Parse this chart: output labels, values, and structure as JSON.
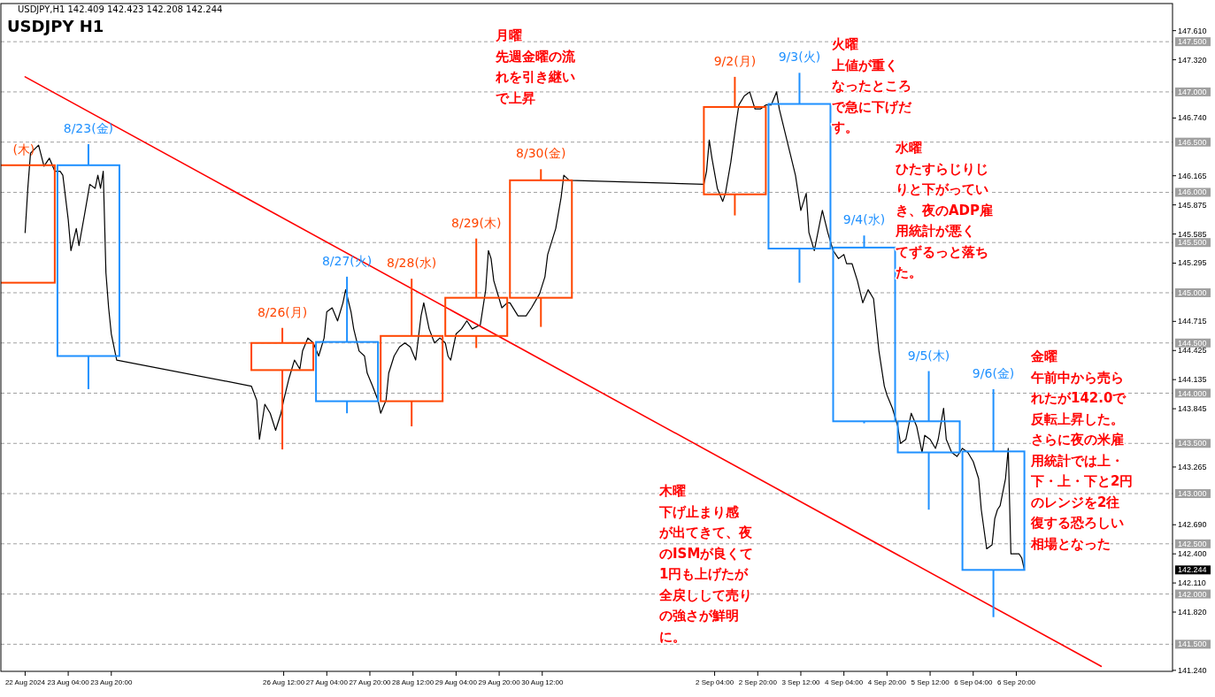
{
  "chart_data": {
    "type": "candlestick",
    "title": "USDJPY H1",
    "subtitle": "USDJPY,H1  142.409 142.423 142.208 142.244",
    "x": [
      "2024-08-22T11:30",
      "2024-08-23T11:30",
      "2024-08-26T11:30",
      "2024-08-27T11:30",
      "2024-08-28T11:30",
      "2024-08-29T11:30",
      "2024-08-30T11:30",
      "2024-09-02T11:30",
      "2024-09-03T11:30",
      "2024-09-04T11:30",
      "2024-09-05T11:30",
      "2024-09-06T11:30"
    ],
    "ohlc": [
      [
        145.1,
        146.27,
        145.1,
        146.27
      ],
      [
        146.27,
        146.48,
        144.04,
        144.37
      ],
      [
        144.23,
        144.65,
        143.44,
        144.5
      ],
      [
        144.51,
        145.16,
        143.8,
        143.92
      ],
      [
        143.92,
        145.14,
        143.67,
        144.57
      ],
      [
        144.57,
        145.54,
        144.45,
        144.95
      ],
      [
        144.95,
        146.23,
        144.66,
        146.12
      ],
      [
        145.98,
        147.15,
        145.77,
        146.85
      ],
      [
        146.88,
        147.19,
        145.1,
        145.44
      ],
      [
        145.45,
        145.57,
        143.7,
        143.72
      ],
      [
        143.72,
        144.22,
        142.84,
        143.41
      ],
      [
        143.42,
        144.04,
        141.77,
        142.24
      ]
    ],
    "colors": [
      "#ff4500",
      "#1e90ff",
      "#ff4500",
      "#1e90ff",
      "#ff4500",
      "#ff4500",
      "#ff4500",
      "#ff4500",
      "#1e90ff",
      "#1e90ff",
      "#1e90ff",
      "#1e90ff"
    ],
    "series": [
      {
        "type": "line",
        "color": "#000000",
        "x": [
          "2024-08-22T12:00",
          "2024-08-22T13:00",
          "2024-08-22T14:00",
          "2024-08-22T17:00",
          "2024-08-22T19:00",
          "2024-08-22T21:00",
          "2024-08-22T23:00",
          "2024-08-23T01:00",
          "2024-08-23T02:00",
          "2024-08-23T04:00",
          "2024-08-23T05:00",
          "2024-08-23T07:00",
          "2024-08-23T08:00",
          "2024-08-23T10:00",
          "2024-08-23T12:00",
          "2024-08-23T14:00",
          "2024-08-23T15:00",
          "2024-08-23T16:00",
          "2024-08-23T17:00",
          "2024-08-23T18:00",
          "2024-08-23T19:00",
          "2024-08-23T20:00",
          "2024-08-23T22:00",
          "2024-08-26T00:00",
          "2024-08-26T02:00",
          "2024-08-26T03:00",
          "2024-08-26T05:00",
          "2024-08-26T07:00",
          "2024-08-26T09:00",
          "2024-08-26T11:00",
          "2024-08-26T12:00",
          "2024-08-26T14:00",
          "2024-08-26T16:00",
          "2024-08-26T18:00",
          "2024-08-26T19:00",
          "2024-08-26T21:00",
          "2024-08-26T23:00",
          "2024-08-27T01:00",
          "2024-08-27T03:00",
          "2024-08-27T04:00",
          "2024-08-27T06:00",
          "2024-08-27T08:00",
          "2024-08-27T10:00",
          "2024-08-27T11:00",
          "2024-08-27T13:00",
          "2024-08-27T14:00",
          "2024-08-27T16:00",
          "2024-08-27T18:00",
          "2024-08-27T19:00",
          "2024-08-27T21:00",
          "2024-08-27T23:00",
          "2024-08-28T00:00",
          "2024-08-28T02:00",
          "2024-08-28T03:00",
          "2024-08-28T05:00",
          "2024-08-28T07:00",
          "2024-08-28T09:00",
          "2024-08-28T11:00",
          "2024-08-28T13:00",
          "2024-08-28T15:00",
          "2024-08-28T16:00",
          "2024-08-28T18:00",
          "2024-08-28T20:00",
          "2024-08-28T22:00",
          "2024-08-29T00:00",
          "2024-08-29T01:00",
          "2024-08-29T02:00",
          "2024-08-29T04:00",
          "2024-08-29T06:00",
          "2024-08-29T08:00",
          "2024-08-29T10:00",
          "2024-08-29T13:00",
          "2024-08-29T15:00",
          "2024-08-29T16:00",
          "2024-08-29T17:00",
          "2024-08-29T18:00",
          "2024-08-29T20:00",
          "2024-08-29T21:00",
          "2024-08-29T23:00",
          "2024-08-30T00:00",
          "2024-08-30T03:00",
          "2024-08-30T06:00",
          "2024-08-30T08:00",
          "2024-08-30T11:00",
          "2024-08-30T13:00",
          "2024-08-30T14:00",
          "2024-08-30T17:00",
          "2024-08-30T19:00",
          "2024-08-30T20:00",
          "2024-08-30T22:00",
          "2024-09-02T00:00",
          "2024-09-02T01:00",
          "2024-09-02T02:00",
          "2024-09-02T03:00",
          "2024-09-02T05:00",
          "2024-09-02T07:00",
          "2024-09-02T08:00",
          "2024-09-02T10:00",
          "2024-09-02T12:00",
          "2024-09-02T13:00",
          "2024-09-02T15:00",
          "2024-09-02T17:00",
          "2024-09-02T19:00",
          "2024-09-02T21:00",
          "2024-09-02T23:00",
          "2024-09-03T01:00",
          "2024-09-03T03:00",
          "2024-09-03T04:00",
          "2024-09-03T06:00",
          "2024-09-03T08:00",
          "2024-09-03T10:00",
          "2024-09-03T12:00",
          "2024-09-03T14:00",
          "2024-09-03T15:00",
          "2024-09-03T17:00",
          "2024-09-03T19:00",
          "2024-09-03T20:00",
          "2024-09-03T22:00",
          "2024-09-04T00:00",
          "2024-09-04T02:00",
          "2024-09-04T04:00",
          "2024-09-04T05:00",
          "2024-09-04T07:00",
          "2024-09-04T09:00",
          "2024-09-04T11:00",
          "2024-09-04T13:00",
          "2024-09-04T15:00",
          "2024-09-04T16:00",
          "2024-09-04T17:00",
          "2024-09-04T19:00",
          "2024-09-04T20:00",
          "2024-09-04T22:00",
          "2024-09-05T00:00",
          "2024-09-05T01:00",
          "2024-09-05T03:00",
          "2024-09-05T05:00",
          "2024-09-05T07:00",
          "2024-09-05T09:00",
          "2024-09-05T10:00",
          "2024-09-05T12:00",
          "2024-09-05T14:00",
          "2024-09-05T15:00",
          "2024-09-05T17:00",
          "2024-09-05T18:00",
          "2024-09-05T20:00",
          "2024-09-05T22:00",
          "2024-09-06T00:00",
          "2024-09-06T02:00",
          "2024-09-06T04:00",
          "2024-09-06T06:00",
          "2024-09-06T07:00",
          "2024-09-06T09:00",
          "2024-09-06T11:00",
          "2024-09-06T12:00",
          "2024-09-06T13:00",
          "2024-09-06T14:00",
          "2024-09-06T16:00",
          "2024-09-06T17:00",
          "2024-09-06T18:00",
          "2024-09-06T19:00",
          "2024-09-06T21:00",
          "2024-09-06T22:00",
          "2024-09-06T23:00"
        ],
        "values": [
          145.6,
          146.04,
          146.39,
          146.47,
          146.26,
          146.34,
          146.21,
          146.21,
          146.17,
          145.73,
          145.42,
          145.64,
          145.47,
          145.77,
          146.08,
          146.04,
          146.17,
          146.04,
          146.21,
          145.2,
          144.85,
          144.59,
          144.33,
          144.07,
          143.93,
          143.54,
          143.89,
          143.8,
          143.63,
          143.8,
          143.93,
          144.15,
          144.33,
          144.24,
          144.42,
          144.55,
          144.5,
          144.37,
          144.55,
          144.81,
          144.85,
          144.72,
          144.9,
          145.03,
          144.81,
          144.64,
          144.42,
          144.37,
          144.2,
          144.07,
          143.93,
          143.8,
          143.93,
          144.2,
          144.37,
          144.46,
          144.5,
          144.46,
          144.33,
          144.77,
          144.9,
          144.64,
          144.5,
          144.55,
          144.5,
          144.37,
          144.33,
          144.59,
          144.64,
          144.72,
          144.64,
          144.68,
          145.03,
          145.42,
          145.34,
          145.12,
          144.94,
          144.85,
          144.9,
          144.9,
          144.77,
          144.77,
          144.85,
          144.99,
          145.16,
          145.38,
          145.64,
          145.95,
          146.17,
          146.12,
          146.08,
          146.21,
          146.52,
          146.34,
          146.04,
          145.91,
          145.99,
          146.3,
          146.69,
          146.87,
          146.96,
          147.0,
          146.83,
          146.83,
          146.87,
          146.87,
          147.0,
          146.83,
          146.61,
          146.39,
          146.17,
          145.82,
          145.99,
          145.6,
          145.42,
          145.69,
          145.82,
          145.6,
          145.42,
          145.34,
          145.38,
          145.29,
          145.29,
          145.12,
          144.9,
          145.03,
          144.94,
          144.68,
          144.42,
          144.07,
          143.98,
          143.85,
          143.67,
          143.5,
          143.54,
          143.8,
          143.67,
          143.41,
          143.58,
          143.54,
          143.45,
          143.54,
          143.85,
          143.54,
          143.41,
          143.37,
          143.45,
          143.41,
          143.32,
          143.15,
          142.84,
          142.45,
          142.49,
          142.75,
          142.84,
          142.88,
          143.15,
          143.45,
          142.4,
          142.4,
          142.4,
          142.36,
          142.24
        ]
      },
      {
        "type": "line",
        "color": "#ff0000",
        "x": [
          "2024-08-22T12:00",
          "2024-09-08T03:30"
        ],
        "values": [
          147.15,
          141.28
        ]
      }
    ],
    "xlim": [
      "2024-08-22T03:00",
      "2024-09-09T06:00"
    ],
    "ylim": [
      141.23,
      147.88
    ],
    "xticks": [
      {
        "value": "2024-08-22T12:00",
        "label": "22 Aug 2024"
      },
      {
        "value": "2024-08-23T04:00",
        "label": "23 Aug 04:00"
      },
      {
        "value": "2024-08-23T20:00",
        "label": "23 Aug 20:00"
      },
      {
        "value": "2024-08-26T12:00",
        "label": "26 Aug 12:00"
      },
      {
        "value": "2024-08-27T04:00",
        "label": "27 Aug 04:00"
      },
      {
        "value": "2024-08-27T20:00",
        "label": "27 Aug 20:00"
      },
      {
        "value": "2024-08-28T12:00",
        "label": "28 Aug 12:00"
      },
      {
        "value": "2024-08-29T04:00",
        "label": "29 Aug 04:00"
      },
      {
        "value": "2024-08-29T20:00",
        "label": "29 Aug 20:00"
      },
      {
        "value": "2024-08-30T12:00",
        "label": "30 Aug 12:00"
      },
      {
        "value": "2024-09-02T04:00",
        "label": "2 Sep 04:00"
      },
      {
        "value": "2024-09-02T20:00",
        "label": "2 Sep 20:00"
      },
      {
        "value": "2024-09-03T12:00",
        "label": "3 Sep 12:00"
      },
      {
        "value": "2024-09-04T04:00",
        "label": "4 Sep 04:00"
      },
      {
        "value": "2024-09-04T20:00",
        "label": "4 Sep 20:00"
      },
      {
        "value": "2024-09-05T12:00",
        "label": "5 Sep 12:00"
      },
      {
        "value": "2024-09-06T04:00",
        "label": "6 Sep 04:00"
      },
      {
        "value": "2024-09-06T20:00",
        "label": "6 Sep 20:00"
      }
    ],
    "yticks": [
      {
        "value": 147.61,
        "label": "147.610"
      },
      {
        "value": 147.32,
        "label": "147.320"
      },
      {
        "value": 146.74,
        "label": "146.740"
      },
      {
        "value": 146.165,
        "label": "146.165"
      },
      {
        "value": 145.875,
        "label": "145.875"
      },
      {
        "value": 145.585,
        "label": "145.585"
      },
      {
        "value": 145.295,
        "label": "145.295"
      },
      {
        "value": 144.715,
        "label": "144.715"
      },
      {
        "value": 144.425,
        "label": "144.425"
      },
      {
        "value": 144.135,
        "label": "144.135"
      },
      {
        "value": 143.845,
        "label": "143.845"
      },
      {
        "value": 143.265,
        "label": "143.265"
      },
      {
        "value": 142.69,
        "label": "142.690"
      },
      {
        "value": 142.4,
        "label": "142.400"
      },
      {
        "value": 142.11,
        "label": "142.110"
      },
      {
        "value": 141.82,
        "label": "141.820"
      },
      {
        "value": 141.24,
        "label": "141.240"
      }
    ],
    "ref_lines": [
      {
        "axis": "y",
        "value": 147.5,
        "label": "147.500",
        "color": "#a0a0a0",
        "line_style": "dashed"
      },
      {
        "axis": "y",
        "value": 147.0,
        "label": "147.000",
        "color": "#a0a0a0",
        "line_style": "dashed"
      },
      {
        "axis": "y",
        "value": 146.5,
        "label": "146.500",
        "color": "#a0a0a0",
        "line_style": "dashed"
      },
      {
        "axis": "y",
        "value": 146.0,
        "label": "146.000",
        "color": "#a0a0a0",
        "line_style": "dashed"
      },
      {
        "axis": "y",
        "value": 145.5,
        "label": "145.500",
        "color": "#a0a0a0",
        "line_style": "dashed"
      },
      {
        "axis": "y",
        "value": 145.0,
        "label": "145.000",
        "color": "#a0a0a0",
        "line_style": "dashed"
      },
      {
        "axis": "y",
        "value": 144.5,
        "label": "144.500",
        "color": "#a0a0a0",
        "line_style": "dashed"
      },
      {
        "axis": "y",
        "value": 144.0,
        "label": "144.000",
        "color": "#a0a0a0",
        "line_style": "dashed"
      },
      {
        "axis": "y",
        "value": 143.5,
        "label": "143.500",
        "color": "#a0a0a0",
        "line_style": "dashed"
      },
      {
        "axis": "y",
        "value": 143.0,
        "label": "143.000",
        "color": "#a0a0a0",
        "line_style": "dashed"
      },
      {
        "axis": "y",
        "value": 142.5,
        "label": "142.500",
        "color": "#a0a0a0",
        "line_style": "dashed"
      },
      {
        "axis": "y",
        "value": 142.0,
        "label": "142.000",
        "color": "#a0a0a0",
        "line_style": "dashed"
      },
      {
        "axis": "y",
        "value": 141.5,
        "label": "141.500",
        "color": "#a0a0a0",
        "line_style": "dashed"
      }
    ],
    "annotations": [
      "月曜先週金曜の流れを引き継いで上昇",
      "火曜上値が重くなったところで急に下げだす。",
      "水曜ひたすらじりじりと下がっていき、夜のADP雇用統計が悪くてずるっと落ちた。",
      "木曜下げ止まり感が出てきて、夜のISMが良くて1円も上げたが全戻しして売りの強さが鮮明に。",
      "金曜午前中から売られたが142.0で反転上昇した。さらに夜の米雇用統計では上・下・上・下と2円のレンジを2往復する恐ろしい相場となった",
      "(木)",
      "8/23(金)",
      "8/26(月)",
      "8/27(火)",
      "8/28(水)",
      "8/29(木)",
      "8/30(金)",
      "9/2(月)",
      "9/3(火)",
      "9/4(水)",
      "9/5(木)",
      "9/6(金)",
      "142.244"
    ]
  }
}
